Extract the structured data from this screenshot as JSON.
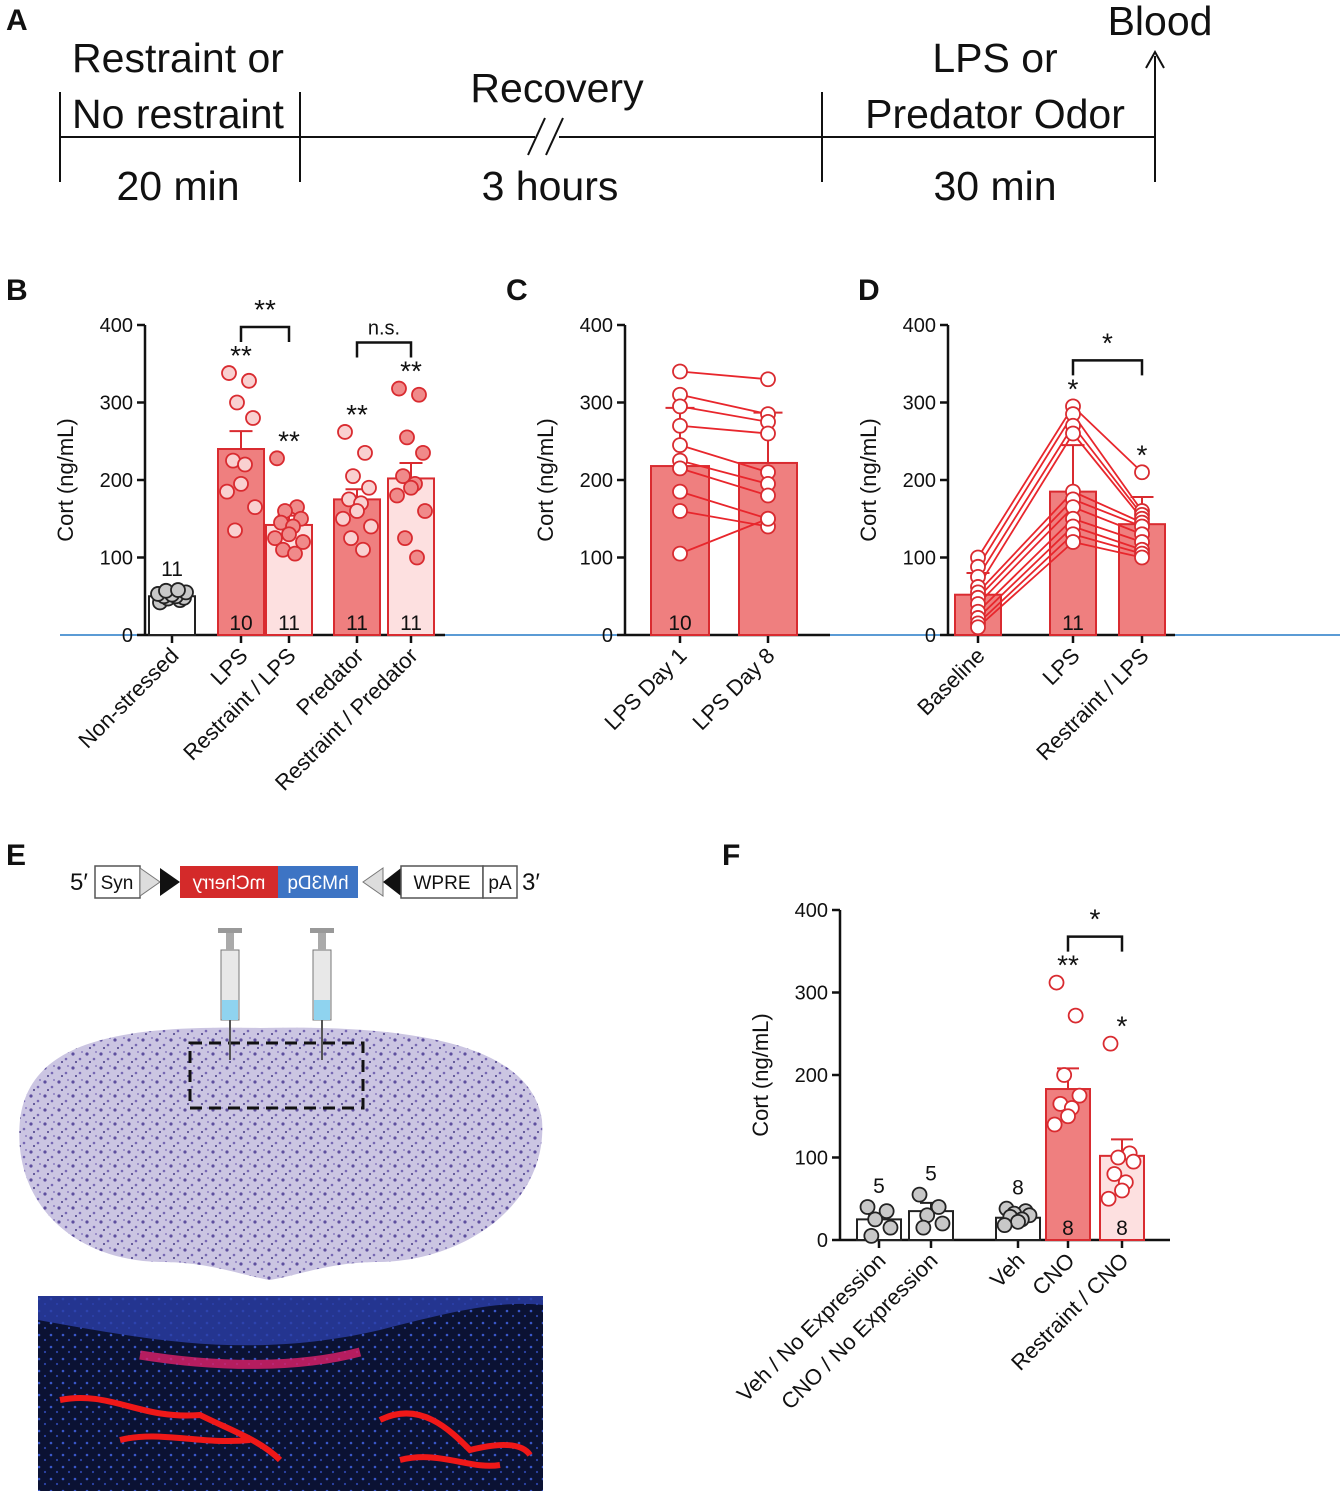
{
  "timeline": {
    "panel": "A",
    "segments": [
      {
        "top": [
          "Restraint or",
          "No restraint"
        ],
        "bottom": "20 min"
      },
      {
        "top": [
          "Recovery"
        ],
        "bottom": "3 hours"
      },
      {
        "top": [
          "LPS or",
          "Predator Odor"
        ],
        "bottom": "30 min"
      }
    ],
    "end": "Blood"
  },
  "chart_data": [
    {
      "type": "bar",
      "panel": "B",
      "ylabel": "Cort (ng/mL)",
      "ylim": [
        0,
        400
      ],
      "yticks": [
        0,
        100,
        200,
        300,
        400
      ],
      "categories": [
        "Non-stressed",
        "LPS",
        "Restraint / LPS",
        "Predator",
        "Restraint / Predator"
      ],
      "values": [
        50,
        240,
        142,
        175,
        202
      ],
      "errors": [
        3,
        23,
        12,
        13,
        20
      ],
      "n": [
        11,
        10,
        11,
        11,
        11
      ],
      "colors": [
        "#ffffff",
        "#ef7f7f",
        "#fde0e0",
        "#ef7f7f",
        "#fde0e0"
      ],
      "edge_colors": [
        "#222222",
        "#d92b30",
        "#d92b30",
        "#d92b30",
        "#d92b30"
      ],
      "point_colors": [
        "#c8c8c8",
        "#f9d0d0",
        "#f08a8a",
        "#f9d0d0",
        "#f08a8a"
      ],
      "points": [
        [
          42,
          45,
          47,
          48,
          50,
          50,
          52,
          53,
          55,
          57,
          58
        ],
        [
          338,
          328,
          300,
          280,
          225,
          220,
          195,
          185,
          165,
          135
        ],
        [
          228,
          165,
          160,
          150,
          145,
          140,
          130,
          125,
          120,
          110,
          105
        ],
        [
          262,
          235,
          205,
          190,
          175,
          170,
          160,
          150,
          140,
          125,
          110
        ],
        [
          318,
          310,
          255,
          235,
          205,
          195,
          190,
          180,
          160,
          125,
          100
        ]
      ],
      "stars": [
        null,
        "**",
        "**",
        "**",
        "**"
      ],
      "brackets": [
        {
          "between": [
            "LPS",
            "Restraint / LPS"
          ],
          "label": "**"
        },
        {
          "between": [
            "Predator",
            "Restraint / Predator"
          ],
          "label": "n.s."
        }
      ]
    },
    {
      "type": "paired_bar",
      "panel": "C",
      "ylabel": "Cort (ng/mL)",
      "ylim": [
        0,
        400
      ],
      "yticks": [
        0,
        100,
        200,
        300,
        400
      ],
      "categories": [
        "LPS Day 1",
        "LPS Day 8"
      ],
      "values": [
        218,
        222
      ],
      "errors": [
        75,
        65
      ],
      "n": [
        10,
        null
      ],
      "colors": [
        "#ef7f7f",
        "#ef7f7f"
      ],
      "edge_colors": [
        "#d92b30",
        "#d92b30"
      ],
      "point_colors": [
        "#ffffff",
        "#ffffff"
      ],
      "line_color": "#e8262c",
      "points": [
        [
          340,
          310,
          295,
          270,
          245,
          225,
          215,
          185,
          160,
          105
        ],
        [
          330,
          285,
          275,
          260,
          210,
          195,
          180,
          150,
          140,
          150
        ]
      ],
      "stars": [
        null,
        null
      ],
      "brackets": []
    },
    {
      "type": "paired_bar",
      "panel": "D",
      "ylabel": "Cort (ng/mL)",
      "ylim": [
        0,
        400
      ],
      "yticks": [
        0,
        100,
        200,
        300,
        400
      ],
      "categories": [
        "Baseline",
        "LPS",
        "Restraint / LPS"
      ],
      "values": [
        52,
        185,
        143
      ],
      "errors": [
        28,
        60,
        35
      ],
      "n": [
        null,
        11,
        null
      ],
      "colors": [
        "#ef7f7f",
        "#ef7f7f",
        "#ef7f7f"
      ],
      "edge_colors": [
        "#d92b30",
        "#d92b30",
        "#d92b30"
      ],
      "point_colors": [
        "#ffffff",
        "#ffffff",
        "#ffffff"
      ],
      "line_color": "#e8262c",
      "points": [
        [
          100,
          88,
          75,
          62,
          55,
          48,
          40,
          30,
          22,
          15,
          10
        ],
        [
          295,
          285,
          270,
          260,
          185,
          175,
          165,
          150,
          140,
          130,
          120
        ],
        [
          210,
          160,
          155,
          150,
          145,
          140,
          130,
          120,
          110,
          105,
          100
        ]
      ],
      "stars": [
        null,
        "*",
        "*"
      ],
      "brackets": [
        {
          "between": [
            "LPS",
            "Restraint / LPS"
          ],
          "label": "*"
        }
      ]
    },
    {
      "type": "bar",
      "panel": "F",
      "ylabel": "Cort (ng/mL)",
      "ylim": [
        0,
        400
      ],
      "yticks": [
        0,
        100,
        200,
        300,
        400
      ],
      "categories": [
        "Veh / No Expression",
        "CNO / No Expression",
        "Veh",
        "CNO",
        "Restraint / CNO"
      ],
      "values": [
        25,
        35,
        27,
        183,
        102
      ],
      "errors": [
        6,
        10,
        4,
        25,
        20
      ],
      "n": [
        5,
        5,
        8,
        8,
        8
      ],
      "colors": [
        "#ffffff",
        "#ffffff",
        "#ffffff",
        "#ef7f7f",
        "#fde0e0"
      ],
      "edge_colors": [
        "#222222",
        "#222222",
        "#222222",
        "#d92b30",
        "#d92b30"
      ],
      "point_colors": [
        "#c8c8c8",
        "#c8c8c8",
        "#c8c8c8",
        "#ffffff",
        "#ffffff"
      ],
      "points": [
        [
          40,
          35,
          25,
          15,
          5
        ],
        [
          55,
          40,
          30,
          20,
          15
        ],
        [
          38,
          35,
          32,
          30,
          28,
          25,
          22,
          18
        ],
        [
          312,
          272,
          200,
          175,
          165,
          160,
          150,
          140
        ],
        [
          238,
          105,
          100,
          95,
          80,
          70,
          60,
          50
        ]
      ],
      "stars": [
        null,
        null,
        null,
        "**",
        "*"
      ],
      "brackets": [
        {
          "between": [
            "CNO",
            "Restraint / CNO"
          ],
          "label": "*"
        }
      ]
    }
  ],
  "construct": {
    "panel": "E",
    "left": "5′",
    "promoter": "Syn",
    "reporter": "mCherry",
    "receptor": "hM3Dq",
    "element": "WPRE",
    "polyA": "pA",
    "right": "3′"
  }
}
